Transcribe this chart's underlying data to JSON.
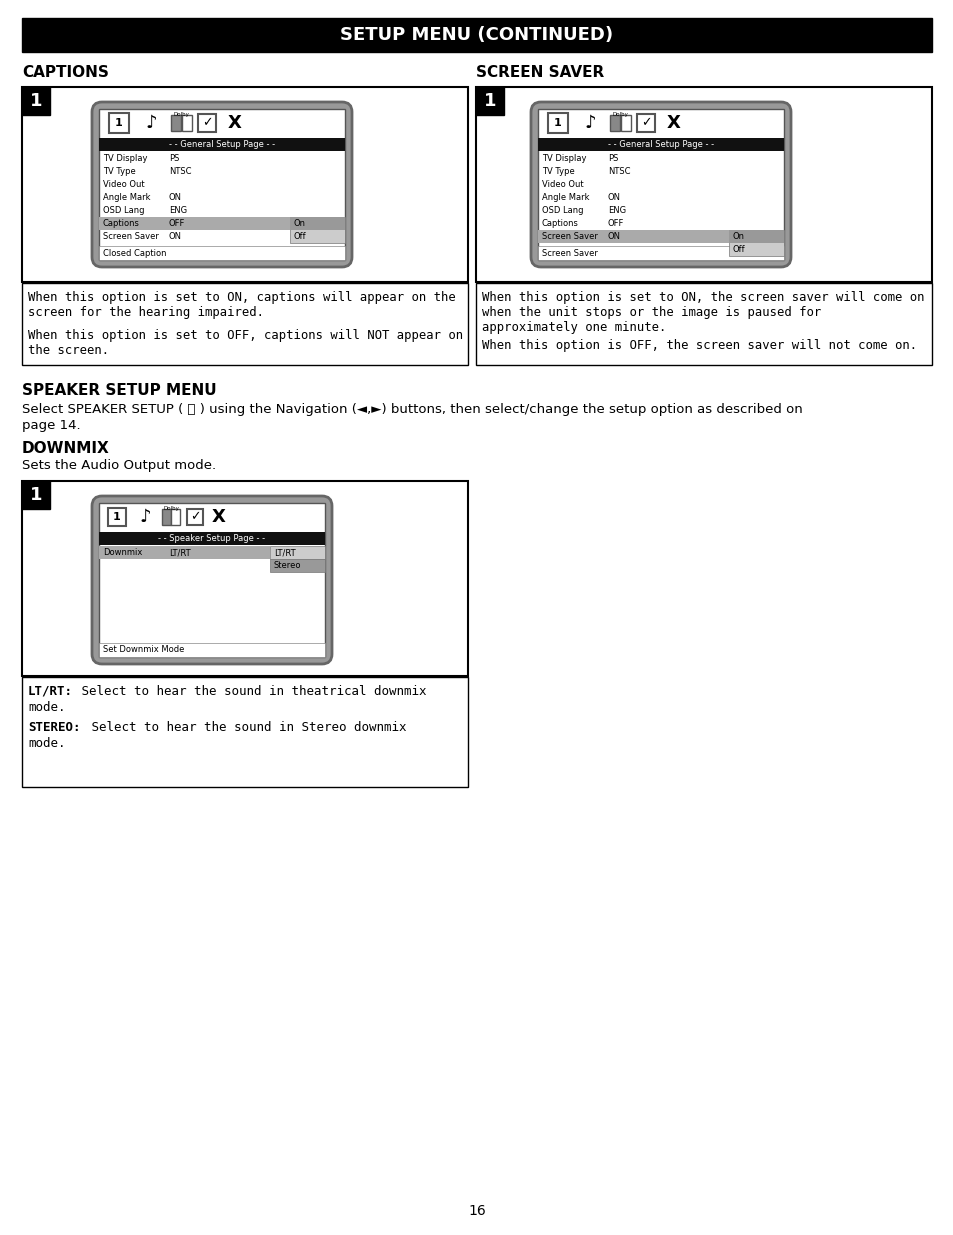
{
  "title": "SETUP MENU (CONTINUED)",
  "title_bg": "#000000",
  "title_color": "#ffffff",
  "page_bg": "#ffffff",
  "section1_heading": "CAPTIONS",
  "section2_heading": "SCREEN SAVER",
  "section3_heading": "SPEAKER SETUP MENU",
  "section4_heading": "DOWNMIX",
  "section4_body": "Sets the Audio Output mode.",
  "captions_desc1": "When this option is set to ON, captions will appear on the\nscreen for the hearing impaired.",
  "captions_desc2": "When this option is set to OFF, captions will NOT appear on\nthe screen.",
  "screensaver_desc1": "When this option is set to ON, the screen saver will come on\nwhen the unit stops or the image is paused for\napproximately one minute.",
  "screensaver_desc2": "When this option is OFF, the screen saver will not come on.",
  "page_number": "16",
  "menu_items_general": [
    [
      "TV Display",
      "PS"
    ],
    [
      "TV Type",
      "NTSC"
    ],
    [
      "Video Out",
      ""
    ],
    [
      "Angle Mark",
      "ON"
    ],
    [
      "OSD Lang",
      "ENG"
    ],
    [
      "Captions",
      "OFF"
    ],
    [
      "Screen Saver",
      "ON"
    ]
  ]
}
